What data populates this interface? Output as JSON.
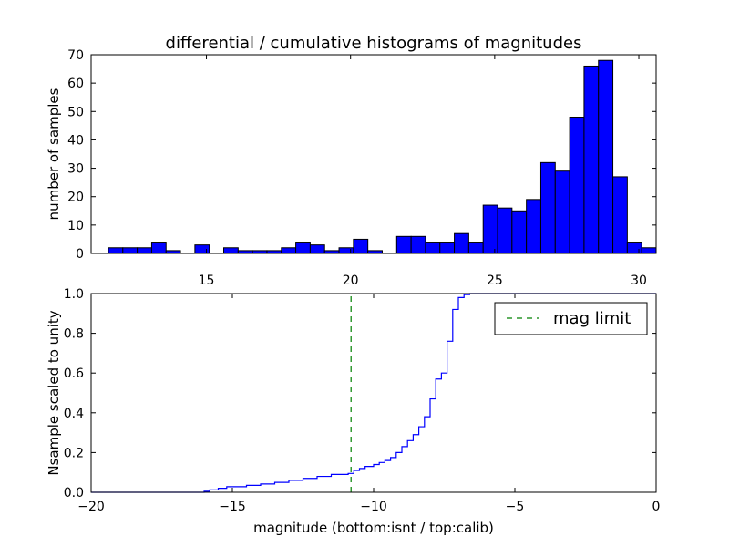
{
  "chart_data": [
    {
      "type": "bar",
      "title": "differential / cumulative histograms of magnitudes",
      "xlabel": "",
      "ylabel": "number of samples",
      "xlim": [
        11,
        30.6
      ],
      "ylim": [
        0,
        70
      ],
      "x_ticks": [
        15,
        20,
        25,
        30
      ],
      "y_ticks": [
        0,
        10,
        20,
        30,
        40,
        50,
        60,
        70
      ],
      "x_tick_position": "top-of-lower-axes",
      "bin_start": 11.6,
      "bin_width": 0.5,
      "values": [
        2,
        2,
        2,
        4,
        1,
        0,
        3,
        0,
        2,
        1,
        1,
        1,
        2,
        4,
        3,
        1,
        2,
        5,
        1,
        0,
        6,
        6,
        4,
        4,
        7,
        4,
        17,
        16,
        15,
        19,
        32,
        29,
        48,
        66,
        68,
        27,
        4,
        2
      ],
      "colors": {
        "bar_fill": "#0000ff",
        "bar_edge": "#000000"
      },
      "grid": false
    },
    {
      "type": "line",
      "title": "",
      "xlabel": "magnitude (bottom:isnt / top:calib)",
      "ylabel": "Nsample scaled to unity",
      "xlim": [
        -20,
        0
      ],
      "ylim": [
        0,
        1.0
      ],
      "x_ticks": [
        -20,
        -15,
        -10,
        -5,
        0
      ],
      "x_tick_labels": [
        "−20",
        "−15",
        "−10",
        "−5",
        "0"
      ],
      "y_ticks": [
        0.0,
        0.2,
        0.4,
        0.6,
        0.8,
        1.0
      ],
      "y_tick_labels": [
        "0.0",
        "0.2",
        "0.4",
        "0.6",
        "0.8",
        "1.0"
      ],
      "grid": false,
      "series": [
        {
          "name": "",
          "step": true,
          "color": "#0000ff",
          "x": [
            -20,
            -16.0,
            -15.8,
            -15.5,
            -15.2,
            -14.5,
            -14.0,
            -13.5,
            -13.0,
            -12.5,
            -12.0,
            -11.5,
            -10.9,
            -10.7,
            -10.5,
            -10.3,
            -10.0,
            -9.8,
            -9.6,
            -9.4,
            -9.2,
            -9.0,
            -8.8,
            -8.6,
            -8.4,
            -8.2,
            -8.0,
            -7.8,
            -7.6,
            -7.4,
            -7.2,
            -7.0,
            -6.8,
            -6.6,
            -6.4
          ],
          "y": [
            0.0,
            0.005,
            0.012,
            0.02,
            0.028,
            0.035,
            0.042,
            0.05,
            0.06,
            0.07,
            0.08,
            0.09,
            0.095,
            0.11,
            0.12,
            0.13,
            0.14,
            0.15,
            0.16,
            0.175,
            0.2,
            0.23,
            0.26,
            0.29,
            0.33,
            0.38,
            0.47,
            0.57,
            0.6,
            0.76,
            0.92,
            0.98,
            0.995,
            1.0,
            1.0
          ]
        },
        {
          "name": "mag limit",
          "dashed": true,
          "color": "#008000",
          "x": [
            -10.8,
            -10.8
          ],
          "y": [
            0,
            1.0
          ]
        }
      ],
      "legend": {
        "placement": "top-right",
        "entries": [
          "mag limit"
        ]
      }
    }
  ]
}
